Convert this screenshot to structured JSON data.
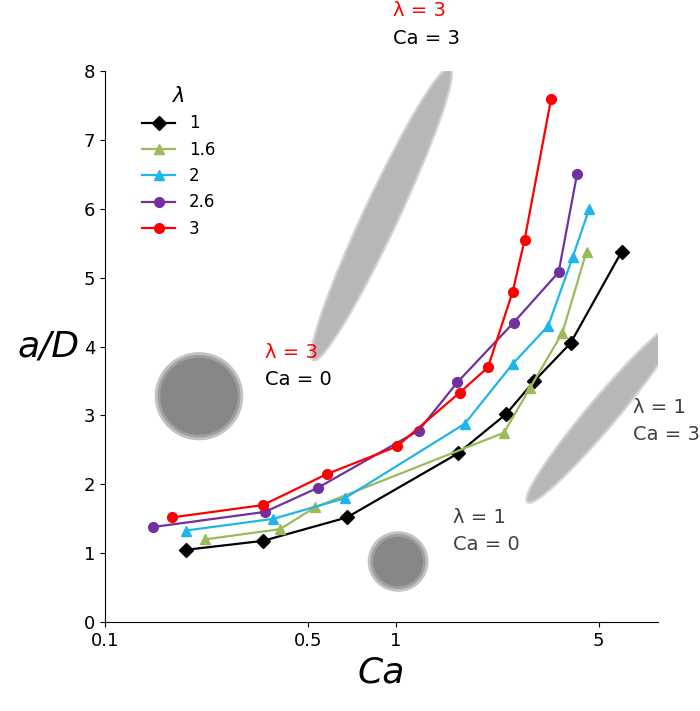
{
  "chart_data": {
    "type": "line",
    "x_label": "Ca",
    "y_label": "a/D",
    "log": "x",
    "xlim": [
      0.1,
      8
    ],
    "xticks": [
      0.1,
      0.5,
      1,
      5
    ],
    "ylim": [
      0,
      8
    ],
    "yticks": [
      0,
      1,
      2,
      3,
      4,
      5,
      6,
      7,
      8
    ],
    "grid": false,
    "legend": "upper left",
    "legend_title": "λ",
    "series": [
      {
        "name": "1",
        "color": "#000000",
        "marker": "diamond",
        "line_style": "solid",
        "x": [
          0.19,
          0.35,
          0.68,
          1.64,
          2.4,
          3.0,
          4.0,
          6.0
        ],
        "values": [
          1.05,
          1.18,
          1.52,
          2.45,
          3.02,
          3.5,
          4.05,
          5.38
        ]
      },
      {
        "name": "1.6",
        "color": "#9bbb59",
        "marker": "triangle",
        "line_style": "solid",
        "x": [
          0.22,
          0.4,
          0.53,
          2.36,
          2.9,
          3.75,
          4.54
        ],
        "values": [
          1.2,
          1.35,
          1.67,
          2.75,
          3.4,
          4.2,
          5.38
        ]
      },
      {
        "name": "2",
        "color": "#1fb5e8",
        "marker": "triangle",
        "line_style": "solid",
        "x": [
          0.19,
          0.38,
          0.67,
          1.73,
          2.53,
          3.35,
          4.07,
          4.64
        ],
        "values": [
          1.33,
          1.5,
          1.8,
          2.88,
          3.75,
          4.3,
          5.3,
          6.0
        ]
      },
      {
        "name": "2.6",
        "color": "#7030a0",
        "marker": "circle",
        "line_style": "solid",
        "x": [
          0.146,
          0.355,
          0.54,
          1.2,
          1.63,
          2.55,
          3.64,
          4.21
        ],
        "values": [
          1.38,
          1.6,
          1.95,
          2.78,
          3.48,
          4.35,
          5.08,
          6.5
        ]
      },
      {
        "name": "3",
        "color": "#ff0000",
        "marker": "circle",
        "line_style": "solid",
        "x": [
          0.17,
          0.35,
          0.58,
          1.01,
          1.66,
          2.08,
          2.53,
          2.78,
          3.43
        ],
        "values": [
          1.52,
          1.7,
          2.15,
          2.55,
          3.33,
          3.7,
          4.8,
          5.55,
          7.6
        ]
      }
    ],
    "annotations": [
      [
        {
          "text": "λ = 3",
          "color": "#ff0000"
        },
        {
          "text": "Ca = 3",
          "color": "#000000"
        }
      ],
      [
        {
          "text": "λ = 3",
          "color": "#ff0000"
        },
        {
          "text": "Ca = 0",
          "color": "#000000"
        }
      ],
      [
        {
          "text": "λ = 1",
          "color": "#404040"
        },
        {
          "text": "Ca = 3",
          "color": "#404040"
        }
      ],
      [
        {
          "text": "λ = 1",
          "color": "#404040"
        },
        {
          "text": "Ca = 0",
          "color": "#404040"
        }
      ]
    ]
  }
}
